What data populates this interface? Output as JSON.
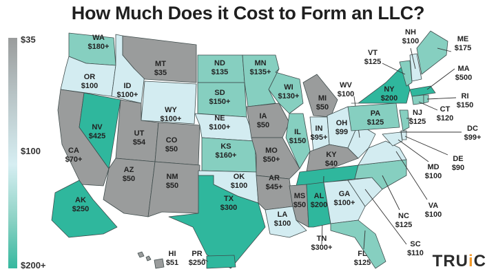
{
  "title": "How Much Does it Cost to Form an LLC?",
  "legend": {
    "top": "$35",
    "middle": "$100",
    "bottom": "$200+",
    "gradient": [
      "#9a9c9c",
      "#d6eef2",
      "#36b89f"
    ]
  },
  "logo": {
    "text_main": "TRU",
    "text_i": "i",
    "text_end": "C"
  },
  "tier_colors": {
    "low": "#9a9c9c",
    "mid": "#d3ecf1",
    "high": "#86cfc0",
    "top": "#2fb79d"
  },
  "states": [
    {
      "abbr": "WA",
      "cost": "$180+",
      "tier": "high"
    },
    {
      "abbr": "OR",
      "cost": "$100",
      "tier": "mid"
    },
    {
      "abbr": "CA",
      "cost": "$70+",
      "tier": "low"
    },
    {
      "abbr": "NV",
      "cost": "$425",
      "tier": "top"
    },
    {
      "abbr": "ID",
      "cost": "$100+",
      "tier": "mid"
    },
    {
      "abbr": "MT",
      "cost": "$35",
      "tier": "low"
    },
    {
      "abbr": "WY",
      "cost": "$100+",
      "tier": "mid"
    },
    {
      "abbr": "UT",
      "cost": "$54",
      "tier": "low"
    },
    {
      "abbr": "CO",
      "cost": "$50",
      "tier": "low"
    },
    {
      "abbr": "AZ",
      "cost": "$50",
      "tier": "low"
    },
    {
      "abbr": "NM",
      "cost": "$50",
      "tier": "low"
    },
    {
      "abbr": "ND",
      "cost": "$135",
      "tier": "high"
    },
    {
      "abbr": "SD",
      "cost": "$150+",
      "tier": "high"
    },
    {
      "abbr": "NE",
      "cost": "$100+",
      "tier": "mid"
    },
    {
      "abbr": "KS",
      "cost": "$160+",
      "tier": "high"
    },
    {
      "abbr": "OK",
      "cost": "$100",
      "tier": "mid"
    },
    {
      "abbr": "TX",
      "cost": "$300",
      "tier": "top"
    },
    {
      "abbr": "MN",
      "cost": "$135+",
      "tier": "high"
    },
    {
      "abbr": "IA",
      "cost": "$50",
      "tier": "low"
    },
    {
      "abbr": "MO",
      "cost": "$50+",
      "tier": "low"
    },
    {
      "abbr": "AR",
      "cost": "$45+",
      "tier": "low"
    },
    {
      "abbr": "LA",
      "cost": "$100",
      "tier": "mid"
    },
    {
      "abbr": "WI",
      "cost": "$130+",
      "tier": "high"
    },
    {
      "abbr": "IL",
      "cost": "$150",
      "tier": "high"
    },
    {
      "abbr": "MI",
      "cost": "$50",
      "tier": "low"
    },
    {
      "abbr": "IN",
      "cost": "$95+",
      "tier": "mid"
    },
    {
      "abbr": "OH",
      "cost": "$99",
      "tier": "mid"
    },
    {
      "abbr": "KY",
      "cost": "$40",
      "tier": "low"
    },
    {
      "abbr": "TN",
      "cost": "$300+",
      "tier": "top"
    },
    {
      "abbr": "MS",
      "cost": "$50",
      "tier": "low"
    },
    {
      "abbr": "AL",
      "cost": "$200",
      "tier": "top"
    },
    {
      "abbr": "GA",
      "cost": "$100+",
      "tier": "mid"
    },
    {
      "abbr": "FL",
      "cost": "$125",
      "tier": "high"
    },
    {
      "abbr": "SC",
      "cost": "$110",
      "tier": "mid"
    },
    {
      "abbr": "NC",
      "cost": "$125",
      "tier": "high"
    },
    {
      "abbr": "VA",
      "cost": "$100",
      "tier": "mid"
    },
    {
      "abbr": "WV",
      "cost": "$100",
      "tier": "mid"
    },
    {
      "abbr": "PA",
      "cost": "$125",
      "tier": "high"
    },
    {
      "abbr": "NY",
      "cost": "$200",
      "tier": "top"
    },
    {
      "abbr": "VT",
      "cost": "$125",
      "tier": "high"
    },
    {
      "abbr": "NH",
      "cost": "$100",
      "tier": "mid"
    },
    {
      "abbr": "ME",
      "cost": "$175",
      "tier": "high"
    },
    {
      "abbr": "MA",
      "cost": "$500",
      "tier": "top"
    },
    {
      "abbr": "CT",
      "cost": "$120",
      "tier": "high"
    },
    {
      "abbr": "RI",
      "cost": "$150",
      "tier": "high"
    },
    {
      "abbr": "NJ",
      "cost": "$125",
      "tier": "high"
    },
    {
      "abbr": "DE",
      "cost": "$90",
      "tier": "mid"
    },
    {
      "abbr": "MD",
      "cost": "$100",
      "tier": "mid"
    },
    {
      "abbr": "DC",
      "cost": "$99+",
      "tier": "mid"
    },
    {
      "abbr": "AK",
      "cost": "$250",
      "tier": "top"
    },
    {
      "abbr": "HI",
      "cost": "$51",
      "tier": "low"
    },
    {
      "abbr": "PR",
      "cost": "$250",
      "tier": "top"
    }
  ]
}
